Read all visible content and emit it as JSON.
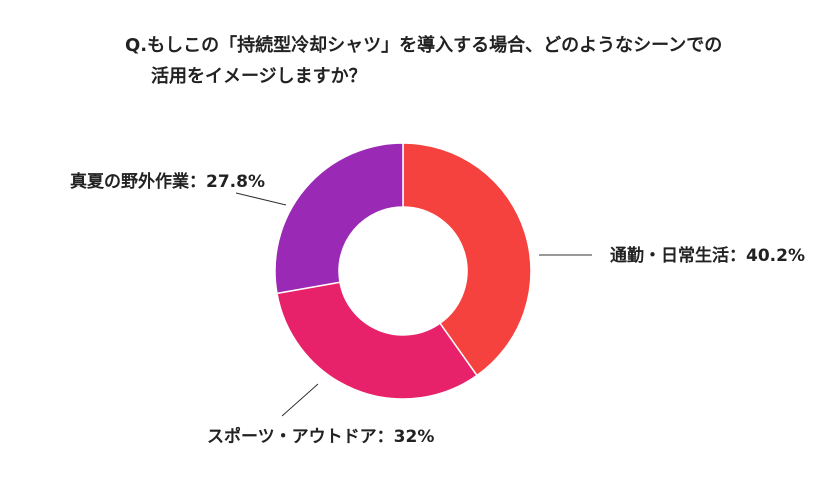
{
  "title": {
    "line1": "Q.もしこの「持続型冷却シャツ」を導入する場合、どのようなシーンでの",
    "line2": "活用をイメージしますか？"
  },
  "chart_data": {
    "type": "pie",
    "donut": true,
    "title": "Q.もしこの「持続型冷却シャツ」を導入する場合、どのようなシーンでの活用をイメージしますか？",
    "slices": [
      {
        "label": "通勤・日常生活",
        "value": 40.2,
        "display": "通勤・日常生活：40.2%",
        "color": "#f5423e"
      },
      {
        "label": "スポーツ・アウトドア",
        "value": 32,
        "display": "スポーツ・アウトドア：32%",
        "color": "#e8216b"
      },
      {
        "label": "真夏の野外作業",
        "value": 27.8,
        "display": "真夏の野外作業：27.8%",
        "color": "#9a2ab5"
      }
    ],
    "legend": "none"
  }
}
